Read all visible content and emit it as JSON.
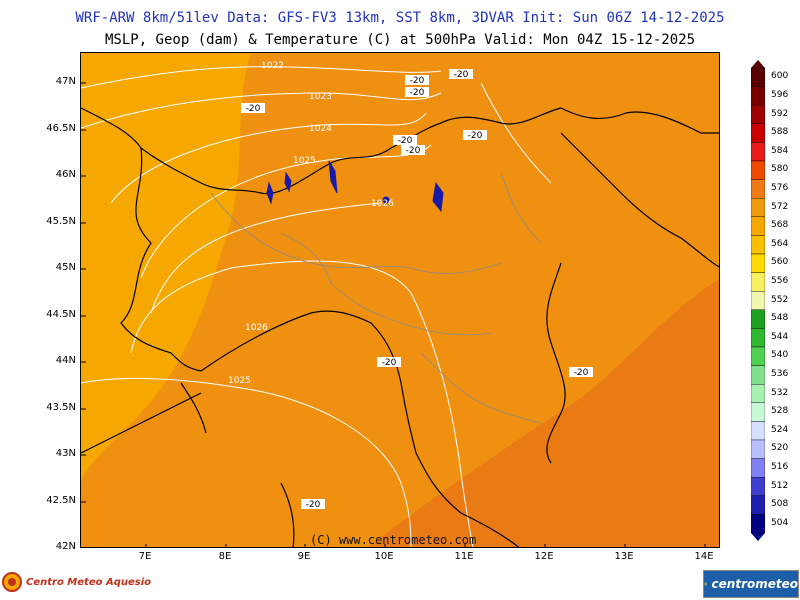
{
  "header": {
    "line1": "WRF-ARW 8km/51lev  Data: GFS-FV3 13km, SST 8km, 3DVAR  Init: Sun 06Z 14-12-2025",
    "line2": "MSLP, Geop (dam) & Temperature (C) at 500hPa  Valid: Mon 04Z 15-12-2025"
  },
  "map": {
    "lat_labels": [
      "47N",
      "46.5N",
      "46N",
      "45.5N",
      "45N",
      "44.5N",
      "44N",
      "43.5N",
      "43N",
      "42.5N",
      "42N"
    ],
    "lon_labels": [
      "7E",
      "8E",
      "9E",
      "10E",
      "11E",
      "12E",
      "13E",
      "14E"
    ],
    "isobar_labels": [
      "1022",
      "1023",
      "1024",
      "1025",
      "1026",
      "1026",
      "1025",
      "1026"
    ],
    "temp_labels": [
      "-20",
      "-20",
      "-20",
      "-20",
      "-20",
      "-20",
      "-20",
      "-20",
      "-20",
      "-20"
    ],
    "copyright": "(C) www.centrometeo.com",
    "colors": {
      "geop_568": "#f6a800",
      "geop_572": "#f09010",
      "geop_576": "#ea7a14",
      "isobar": "#ffffff",
      "coast": "#000000",
      "lakes": "#1a1aa8"
    }
  },
  "colorbar": {
    "labels": [
      "600",
      "596",
      "592",
      "588",
      "584",
      "580",
      "576",
      "572",
      "568",
      "564",
      "560",
      "556",
      "552",
      "548",
      "544",
      "540",
      "536",
      "532",
      "528",
      "524",
      "520",
      "516",
      "512",
      "508",
      "504"
    ],
    "colors": [
      "#5a0000",
      "#7a0000",
      "#a00000",
      "#c80000",
      "#e81a1a",
      "#f04a00",
      "#f07a14",
      "#f09a10",
      "#f6a800",
      "#f8c000",
      "#ffd800",
      "#f8f060",
      "#f0f8b0",
      "#20a020",
      "#30b830",
      "#50d050",
      "#80e090",
      "#a8f0b0",
      "#c8f8d8",
      "#d8e0ff",
      "#b8c0ff",
      "#8080f0",
      "#4040d0",
      "#2020b0",
      "#000080"
    ]
  },
  "logos": {
    "left": "Centro Meteo Aquesio",
    "right": "centrometeo"
  }
}
